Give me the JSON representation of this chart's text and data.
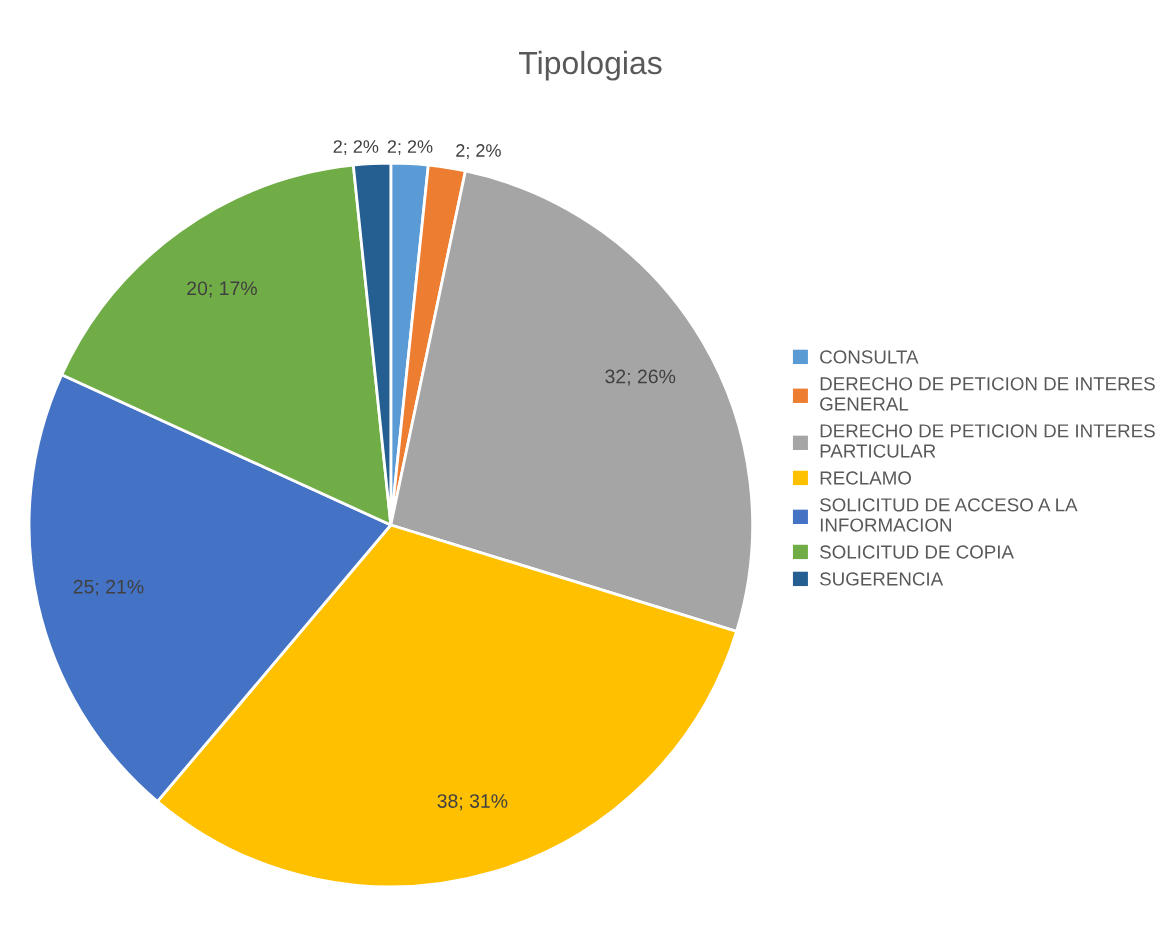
{
  "chart_data": {
    "type": "pie",
    "title": "Tipologias",
    "categories": [
      "CONSULTA",
      "DERECHO DE PETICION DE INTERES GENERAL",
      "DERECHO DE PETICION DE INTERES PARTICULAR",
      "RECLAMO",
      "SOLICITUD DE ACCESO A LA INFORMACION",
      "SOLICITUD DE COPIA",
      "SUGERENCIA"
    ],
    "values": [
      2,
      2,
      32,
      38,
      25,
      20,
      2
    ],
    "value_labels": [
      "2; 2%",
      "2; 2%",
      "32; 26%",
      "38; 31%",
      "25; 21%",
      "20; 17%",
      "2; 2%"
    ],
    "colors": [
      "#5b9bd5",
      "#ed7d31",
      "#a5a5a5",
      "#ffc000",
      "#4472c4",
      "#70ad47",
      "#255e91"
    ],
    "legend": "right"
  }
}
